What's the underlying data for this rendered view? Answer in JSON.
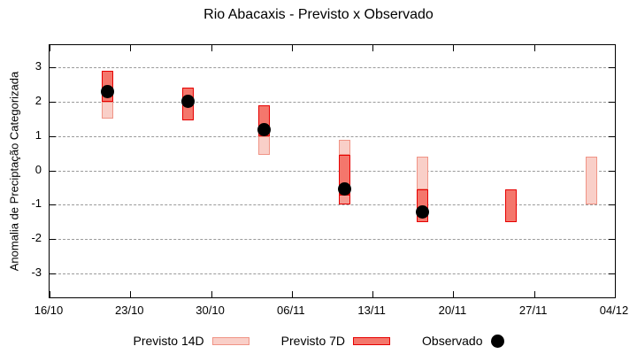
{
  "chart_data": {
    "type": "ranged-bar",
    "title": "Rio Abacaxis - Previsto x Observado",
    "ylabel": "Anomalia de Preciptação Categorizada",
    "yticks": [
      3,
      2,
      1,
      0,
      -1,
      -2,
      -3
    ],
    "ylim": [
      -3.7,
      3.65
    ],
    "xtick_labels": [
      "16/10",
      "23/10",
      "30/10",
      "06/11",
      "13/11",
      "20/11",
      "27/11",
      "04/12"
    ],
    "xtick_days": [
      0,
      7,
      14,
      21,
      28,
      35,
      42,
      49
    ],
    "grid": "horizontal-dotted-only",
    "legend_position": "bottom-center",
    "legend": [
      {
        "label": "Previsto 14D",
        "swatch": "light"
      },
      {
        "label": "Previsto 7D",
        "swatch": "dark"
      },
      {
        "label": "Observado",
        "swatch": "dot"
      }
    ],
    "colors": {
      "previsto_14d_fill": "#f9cfc8",
      "previsto_14d_border": "#f09486",
      "previsto_7d_fill": "#f4776c",
      "previsto_7d_border": "#e60000",
      "previsto_7d_fade_fill": "#f59c92",
      "observado": "#000000",
      "grid": "#9a9a9a",
      "axis": "#000000"
    },
    "points": [
      {
        "date_est": "21/10",
        "day": 5,
        "previsto_14d": [
          1.5,
          2.9
        ],
        "previsto_7d": [
          2.0,
          2.9
        ],
        "observado": 2.3,
        "segments": [
          {
            "lo": 2.0,
            "hi": 2.9,
            "style": "dark"
          },
          {
            "lo": 1.5,
            "hi": 2.0,
            "style": "light"
          }
        ]
      },
      {
        "date_est": "28/10",
        "day": 12,
        "previsto_7d": [
          1.45,
          2.4
        ],
        "observado": 2.0,
        "segments": [
          {
            "lo": 1.45,
            "hi": 2.4,
            "style": "dark"
          }
        ]
      },
      {
        "date_est": "04/11",
        "day": 18.6,
        "previsto_14d": [
          0.45,
          1.9
        ],
        "previsto_7d": [
          1.0,
          1.9
        ],
        "observado": 1.2,
        "segments": [
          {
            "lo": 1.0,
            "hi": 1.9,
            "style": "dark"
          },
          {
            "lo": 0.45,
            "hi": 1.0,
            "style": "light"
          }
        ]
      },
      {
        "date_est": "11/11",
        "day": 25.6,
        "previsto_14d": [
          -1.0,
          0.9
        ],
        "previsto_7d": [
          -1.0,
          0.45
        ],
        "observado": -0.55,
        "segments": [
          {
            "lo": 0.45,
            "hi": 0.9,
            "style": "light"
          },
          {
            "lo": -0.7,
            "hi": 0.45,
            "style": "dark"
          },
          {
            "lo": -1.0,
            "hi": -0.7,
            "style": "darkfade"
          }
        ]
      },
      {
        "date_est": "17/11",
        "day": 32.3,
        "previsto_14d": [
          -0.55,
          0.4
        ],
        "previsto_7d": [
          -1.5,
          -0.55
        ],
        "observado": -1.2,
        "segments": [
          {
            "lo": -0.55,
            "hi": 0.4,
            "style": "light"
          },
          {
            "lo": -1.5,
            "hi": -0.55,
            "style": "dark"
          }
        ]
      },
      {
        "date_est": "25/11",
        "day": 40,
        "previsto_7d": [
          -1.5,
          -0.55
        ],
        "observado": null,
        "segments": [
          {
            "lo": -1.5,
            "hi": -0.55,
            "style": "dark"
          }
        ]
      },
      {
        "date_est": "02/12",
        "day": 47,
        "previsto_14d": [
          -1.0,
          0.4
        ],
        "observado": null,
        "segments": [
          {
            "lo": -1.0,
            "hi": 0.4,
            "style": "light"
          }
        ]
      }
    ]
  }
}
